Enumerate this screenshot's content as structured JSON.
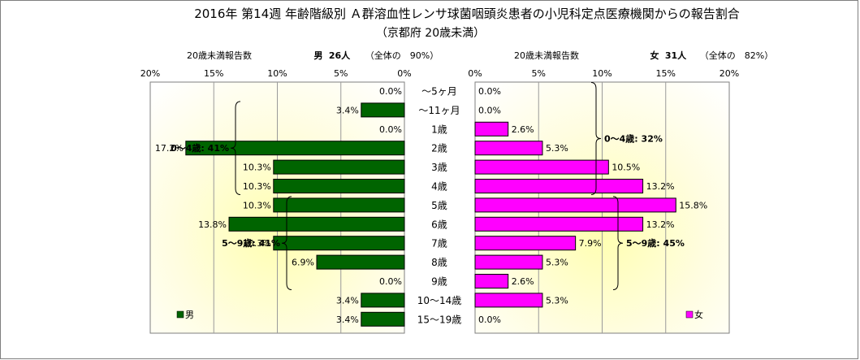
{
  "chart_data": {
    "type": "bar",
    "title": "2016年 第14週 年齢階級別 Ａ群溶血性レンサ球菌咽頭炎患者の小児科定点医療機関からの報告割合",
    "subtitle": "（京都府 20歳未満）",
    "categories": [
      "～5ヶ月",
      "～11ヶ月",
      "1歳",
      "2歳",
      "3歳",
      "4歳",
      "5歳",
      "6歳",
      "7歳",
      "8歳",
      "9歳",
      "10～14歳",
      "15～19歳"
    ],
    "xlim": [
      0,
      20
    ],
    "ticks": [
      "20%",
      "15%",
      "10%",
      "5%",
      "0%"
    ],
    "ticks_right": [
      "0%",
      "5%",
      "10%",
      "15%",
      "20%"
    ],
    "panels": [
      {
        "side": "left",
        "header_label": "20歳未満報告数",
        "header_sex": "男",
        "header_count": "26人",
        "header_share": "（全体の　90%）",
        "legend": "男",
        "color": "#006400",
        "values": [
          0.0,
          3.4,
          0.0,
          17.2,
          10.3,
          10.3,
          10.3,
          13.8,
          10.3,
          6.9,
          0.0,
          3.4,
          3.4
        ],
        "value_labels": [
          "0.0%",
          "3.4%",
          "0.0%",
          "17.2%",
          "10.3%",
          "10.3%",
          "10.3%",
          "13.8%",
          "10.3%",
          "6.9%",
          "0.0%",
          "3.4%",
          "3.4%"
        ],
        "group_annotations": [
          {
            "text": "0～4歳: 41%",
            "from": 1,
            "to": 5
          },
          {
            "text": "5～9歳: 41%",
            "from": 6,
            "to": 10
          }
        ]
      },
      {
        "side": "right",
        "header_label": "20歳未満報告数",
        "header_sex": "女",
        "header_count": "31人",
        "header_share": "（全体の　82%）",
        "legend": "女",
        "color": "#ff00ff",
        "values": [
          0.0,
          0.0,
          2.6,
          5.3,
          10.5,
          13.2,
          15.8,
          13.2,
          7.9,
          5.3,
          2.6,
          5.3,
          0.0
        ],
        "value_labels": [
          "0.0%",
          "0.0%",
          "2.6%",
          "5.3%",
          "10.5%",
          "13.2%",
          "15.8%",
          "13.2%",
          "7.9%",
          "5.3%",
          "2.6%",
          "5.3%",
          "0.0%"
        ],
        "group_annotations": [
          {
            "text": "0～4歳: 32%",
            "from": 0,
            "to": 5
          },
          {
            "text": "5～9歳: 45%",
            "from": 6,
            "to": 10
          }
        ]
      }
    ]
  }
}
